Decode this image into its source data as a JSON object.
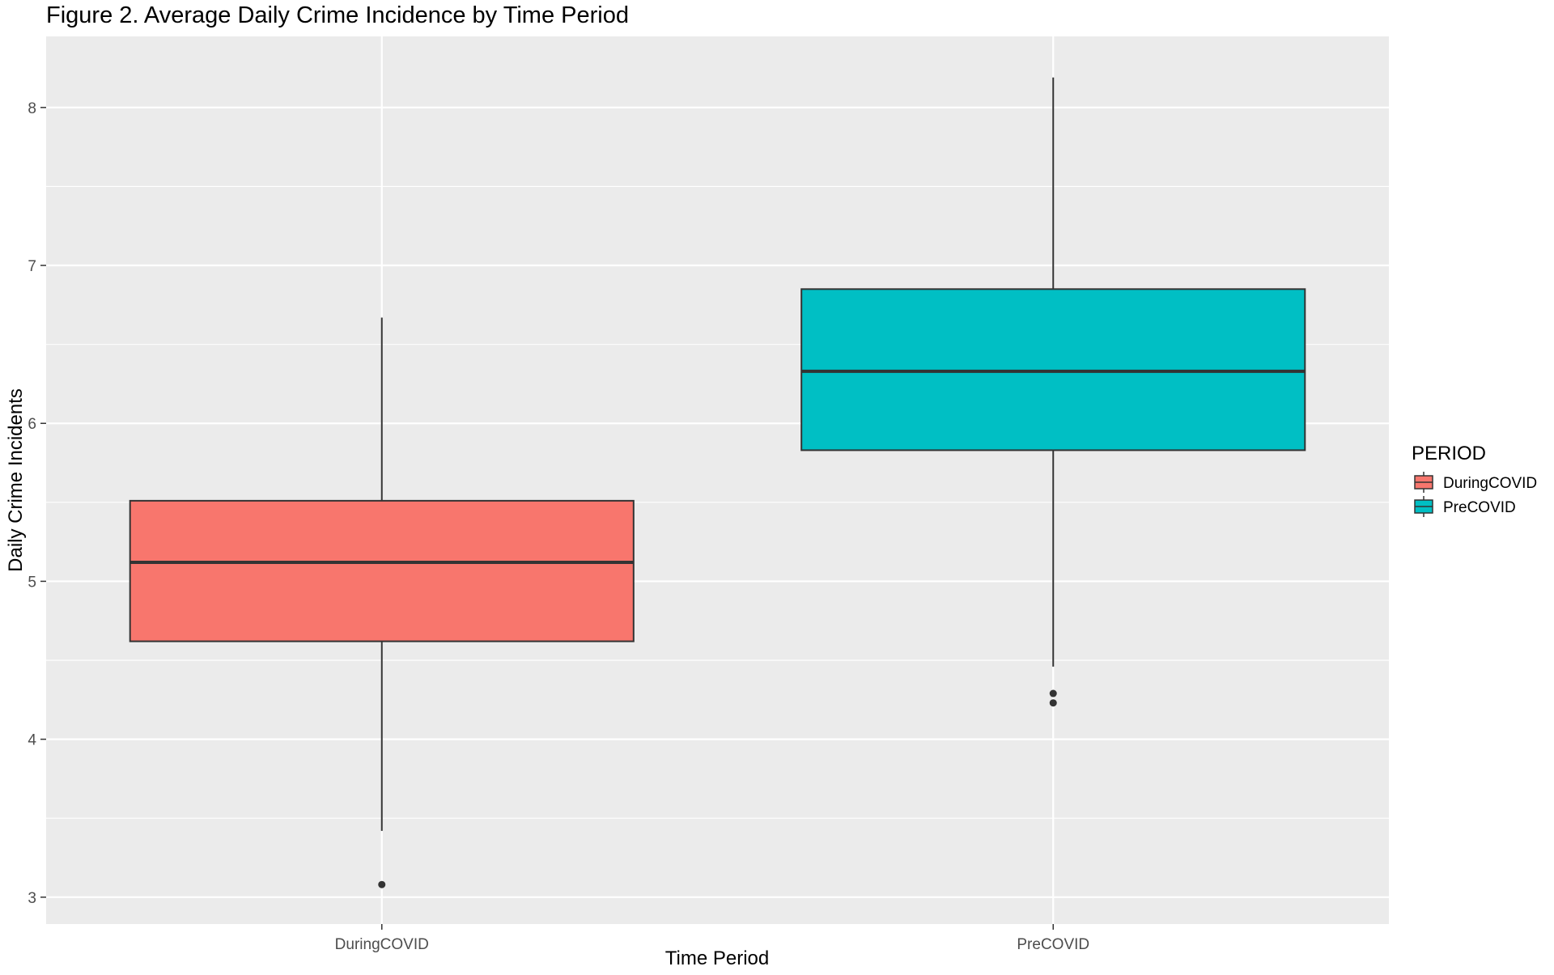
{
  "chart_data": {
    "type": "box",
    "title": "Figure 2. Average Daily Crime Incidence by Time Period",
    "xlabel": "Time Period",
    "ylabel": "Daily Crime Incidents",
    "categories": [
      "DuringCOVID",
      "PreCOVID"
    ],
    "ylim": [
      2.83,
      8.45
    ],
    "yticks": [
      3,
      4,
      5,
      6,
      7,
      8
    ],
    "grid": true,
    "legend": {
      "title": "PERIOD",
      "position": "right",
      "entries": [
        "DuringCOVID",
        "PreCOVID"
      ]
    },
    "colors": {
      "DuringCOVID": "#F8766D",
      "PreCOVID": "#00BFC4",
      "panel": "#EBEBEB",
      "grid": "#FFFFFF",
      "line": "#333333"
    },
    "boxes": [
      {
        "name": "DuringCOVID",
        "whisker_low": 3.42,
        "q1": 4.62,
        "median": 5.12,
        "q3": 5.51,
        "whisker_high": 6.67,
        "outliers": [
          3.08
        ]
      },
      {
        "name": "PreCOVID",
        "whisker_low": 4.46,
        "q1": 5.83,
        "median": 6.33,
        "q3": 6.85,
        "whisker_high": 8.19,
        "outliers": [
          4.29,
          4.23
        ]
      }
    ]
  }
}
